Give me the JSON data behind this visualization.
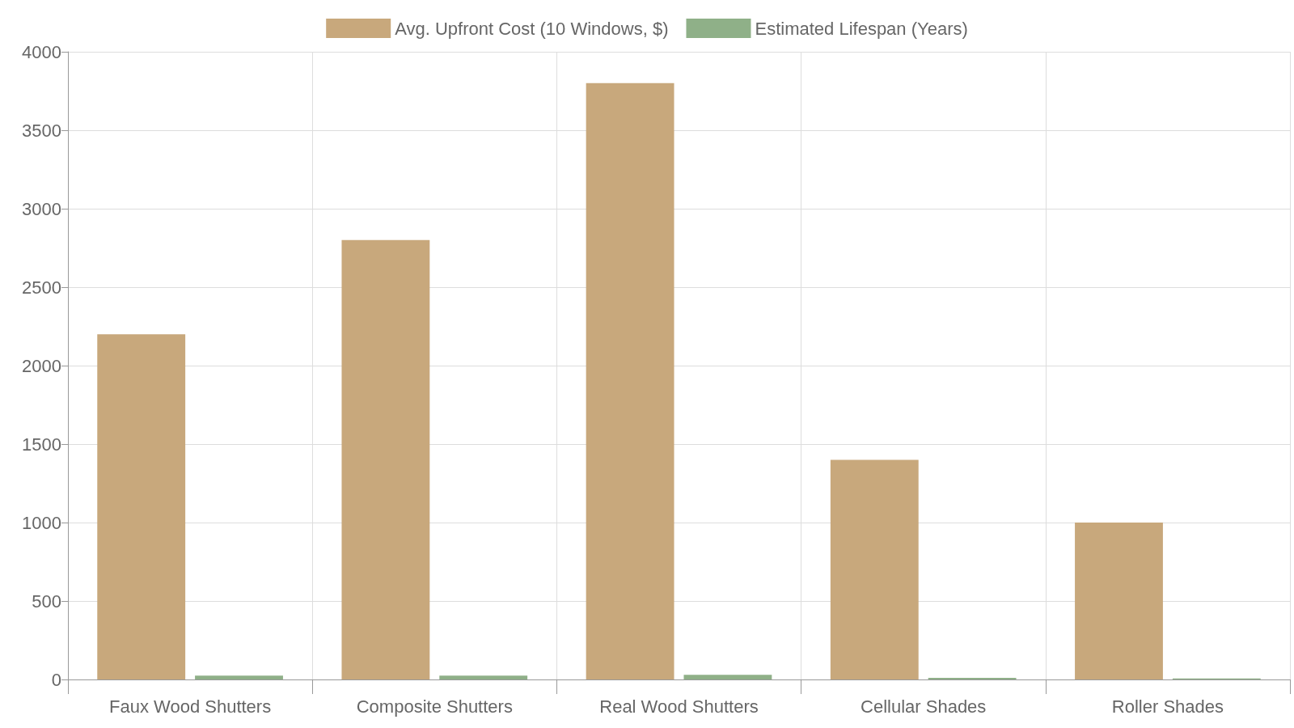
{
  "chart_data": {
    "type": "bar",
    "categories": [
      "Faux Wood Shutters",
      "Composite Shutters",
      "Real Wood Shutters",
      "Cellular Shades",
      "Roller Shades"
    ],
    "series": [
      {
        "name": "Avg. Upfront Cost (10 Windows, $)",
        "color": "#c8a87c",
        "values": [
          2200,
          2800,
          3800,
          1400,
          1000
        ]
      },
      {
        "name": "Estimated Lifespan (Years)",
        "color": "#8fb088",
        "values": [
          25,
          25,
          30,
          10,
          7
        ]
      }
    ],
    "ylim": [
      0,
      4000
    ],
    "yticks": [
      0,
      500,
      1000,
      1500,
      2000,
      2500,
      3000,
      3500,
      4000
    ],
    "grid": true,
    "legend": "top"
  }
}
